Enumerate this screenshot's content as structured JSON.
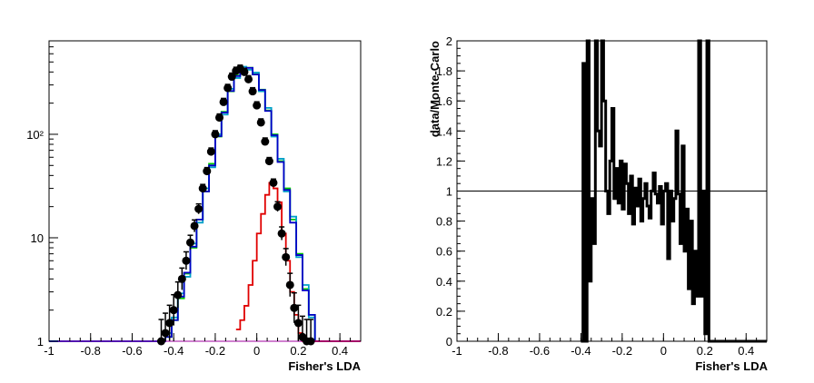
{
  "chart_data": [
    {
      "type": "histogram",
      "panel": "left",
      "title": "",
      "xlabel": "Fisher's LDA",
      "ylabel": "",
      "xlim": [
        -1,
        0.5
      ],
      "ylim": [
        1,
        800
      ],
      "yscale": "log",
      "grid": false,
      "legend": "none",
      "x_ticks": [
        "-1",
        "-0.8",
        "-0.6",
        "-0.4",
        "-0.2",
        "0",
        "0.2",
        "0.4"
      ],
      "y_ticks": [
        "1",
        "10",
        "10²"
      ],
      "series": [
        {
          "color": "#00c800",
          "x": [
            -1,
            -0.95,
            -0.9,
            -0.85,
            -0.8,
            -0.75,
            -0.7,
            -0.65,
            -0.6,
            -0.55,
            -0.5,
            -0.47,
            -0.44,
            -0.41,
            -0.38,
            -0.35,
            -0.32,
            -0.29,
            -0.26,
            -0.23,
            -0.2,
            -0.17,
            -0.14,
            -0.11,
            -0.08,
            -0.05,
            -0.02,
            0.01,
            0.04,
            0.07,
            0.1,
            0.13,
            0.16,
            0.19,
            0.22,
            0.25,
            0.28,
            0.31,
            0.35,
            0.4,
            0.45,
            0.5
          ],
          "y": [
            1,
            1,
            1,
            1,
            1,
            1,
            1,
            1,
            1,
            1,
            1,
            1,
            1.1,
            1.6,
            2.6,
            4.5,
            8,
            15,
            28,
            52,
            95,
            165,
            260,
            370,
            430,
            440,
            380,
            270,
            170,
            100,
            55,
            30,
            15,
            7,
            3.2,
            1.8,
            1,
            1,
            1,
            1,
            1,
            1
          ]
        },
        {
          "color": "#00a0c8",
          "x": [
            -1,
            -0.95,
            -0.9,
            -0.85,
            -0.8,
            -0.75,
            -0.7,
            -0.65,
            -0.6,
            -0.55,
            -0.5,
            -0.47,
            -0.44,
            -0.41,
            -0.38,
            -0.35,
            -0.32,
            -0.29,
            -0.26,
            -0.23,
            -0.2,
            -0.17,
            -0.14,
            -0.11,
            -0.08,
            -0.05,
            -0.02,
            0.01,
            0.04,
            0.07,
            0.1,
            0.13,
            0.16,
            0.19,
            0.22,
            0.25,
            0.28,
            0.31,
            0.35,
            0.4,
            0.45,
            0.5
          ],
          "y": [
            1,
            1,
            1,
            1,
            1,
            1,
            1,
            1,
            1,
            1,
            1,
            1,
            1.2,
            1.7,
            2.9,
            4.2,
            8.8,
            14,
            30,
            48,
            100,
            155,
            275,
            350,
            450,
            420,
            395,
            260,
            180,
            95,
            58,
            28,
            16,
            6.5,
            3.5,
            1.7,
            1,
            1,
            1,
            1,
            1,
            1
          ]
        },
        {
          "color": "#0000c8",
          "x": [
            -1,
            -0.95,
            -0.9,
            -0.85,
            -0.8,
            -0.75,
            -0.7,
            -0.65,
            -0.6,
            -0.55,
            -0.5,
            -0.47,
            -0.44,
            -0.41,
            -0.38,
            -0.35,
            -0.32,
            -0.29,
            -0.26,
            -0.23,
            -0.2,
            -0.17,
            -0.14,
            -0.11,
            -0.08,
            -0.05,
            -0.02,
            0.01,
            0.04,
            0.07,
            0.1,
            0.13,
            0.16,
            0.19,
            0.22,
            0.25,
            0.28,
            0.31,
            0.35,
            0.4,
            0.45,
            0.5
          ],
          "y": [
            1,
            1,
            1,
            1,
            1,
            1,
            1,
            1,
            1,
            1,
            1,
            1,
            1.1,
            1.6,
            2.7,
            4.6,
            8.2,
            15,
            28,
            50,
            96,
            162,
            262,
            365,
            432,
            438,
            378,
            268,
            168,
            98,
            54,
            29,
            14,
            6.8,
            3.1,
            1.8,
            1,
            1,
            1,
            1,
            1,
            1
          ]
        },
        {
          "color": "#e00000",
          "x": [
            -0.1,
            -0.08,
            -0.06,
            -0.04,
            -0.02,
            0,
            0.02,
            0.04,
            0.06,
            0.08,
            0.1,
            0.12,
            0.14,
            0.16,
            0.18,
            0.2,
            0.22
          ],
          "y": [
            1.3,
            1.6,
            2.2,
            3.5,
            6,
            11,
            17,
            26,
            34,
            30,
            22,
            11,
            6,
            3,
            1.8,
            1.2,
            1
          ]
        },
        {
          "color": "#a000a0",
          "x": [
            -1,
            0.5
          ],
          "y": [
            1,
            1
          ]
        },
        {
          "color": "#000000",
          "style": "points",
          "x": [
            -0.46,
            -0.44,
            -0.42,
            -0.4,
            -0.38,
            -0.36,
            -0.34,
            -0.32,
            -0.3,
            -0.28,
            -0.26,
            -0.24,
            -0.22,
            -0.2,
            -0.18,
            -0.16,
            -0.14,
            -0.12,
            -0.1,
            -0.08,
            -0.06,
            -0.04,
            -0.02,
            0,
            0.02,
            0.04,
            0.06,
            0.08,
            0.1,
            0.12,
            0.14,
            0.16,
            0.18,
            0.2,
            0.22,
            0.24,
            0.26
          ],
          "y": [
            1,
            1.2,
            1.5,
            2,
            2.8,
            4,
            6,
            9,
            13,
            19,
            30,
            44,
            68,
            100,
            145,
            205,
            280,
            360,
            410,
            430,
            400,
            340,
            260,
            190,
            130,
            85,
            55,
            34,
            20,
            11,
            6.5,
            3.5,
            2.1,
            1.5,
            1.1,
            1,
            1
          ]
        }
      ]
    },
    {
      "type": "histogram",
      "panel": "right",
      "title": "",
      "xlabel": "Fisher's LDA",
      "ylabel": "data/Monte-Carlo",
      "xlim": [
        -1,
        0.5
      ],
      "ylim": [
        0,
        2
      ],
      "grid": false,
      "legend": "none",
      "reference_line": 1,
      "x_ticks": [
        "-1",
        "-0.8",
        "-0.6",
        "-0.4",
        "-0.2",
        "0",
        "0.2",
        "0.4"
      ],
      "y_ticks": [
        "0",
        "0.2",
        "0.4",
        "0.6",
        "0.8",
        "1",
        "1.2",
        "1.4",
        "1.6",
        "1.8",
        "2"
      ],
      "series": [
        {
          "color": "#000000",
          "x": [
            -0.4,
            -0.39,
            -0.38,
            -0.37,
            -0.36,
            -0.35,
            -0.34,
            -0.33,
            -0.32,
            -0.31,
            -0.3,
            -0.29,
            -0.28,
            -0.27,
            -0.26,
            -0.25,
            -0.24,
            -0.23,
            -0.22,
            -0.21,
            -0.2,
            -0.19,
            -0.18,
            -0.17,
            -0.16,
            -0.15,
            -0.14,
            -0.13,
            -0.12,
            -0.11,
            -0.1,
            -0.09,
            -0.08,
            -0.07,
            -0.06,
            -0.05,
            -0.04,
            -0.03,
            -0.02,
            -0.01,
            0,
            0.01,
            0.02,
            0.03,
            0.04,
            0.05,
            0.06,
            0.07,
            0.08,
            0.09,
            0.1,
            0.11,
            0.12,
            0.13,
            0.14,
            0.15,
            0.16,
            0.17,
            0.18,
            0.19,
            0.2,
            0.21,
            0.22,
            0.23,
            0.24,
            0.25
          ],
          "y": [
            0,
            1.85,
            0,
            2,
            0.4,
            0.95,
            0.65,
            2,
            1.4,
            1.3,
            2,
            1.6,
            1,
            0.85,
            1.2,
            1.55,
            0.95,
            1.15,
            0.92,
            1.2,
            0.88,
            1.18,
            1.05,
            0.85,
            1.1,
            0.78,
            1.02,
            0.9,
            1.08,
            0.8,
            0.95,
            1.05,
            0.9,
            0.82,
            1.0,
            1.12,
            0.98,
            0.92,
            1.03,
            0.78,
            1.0,
            1.05,
            0.55,
            1.0,
            0.8,
            0.95,
            1.4,
            0.98,
            0.65,
            1.3,
            0.6,
            0.88,
            0.35,
            0.8,
            0.25,
            0.6,
            0.3,
            2,
            0.3,
            1,
            0.05,
            2,
            0,
            0,
            0,
            0
          ]
        }
      ]
    }
  ]
}
